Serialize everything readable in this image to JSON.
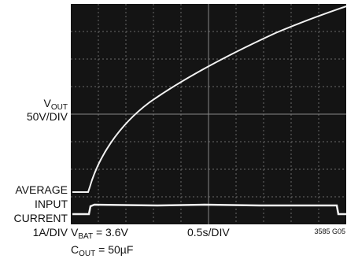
{
  "labels": {
    "vout": {
      "main": "V",
      "sub": "OUT"
    },
    "vout_scale": "50V/DIV",
    "current": [
      "AVERAGE",
      "INPUT",
      "CURRENT"
    ],
    "current_scale": "1A/DIV",
    "vbat": {
      "main": "V",
      "sub": "BAT",
      "rest": " = 3.6V"
    },
    "cout": {
      "main": "C",
      "sub": "OUT",
      "rest": " = 50µF"
    },
    "time_scale": "0.5s/DIV",
    "figure_id": "3585 G05"
  }
}
